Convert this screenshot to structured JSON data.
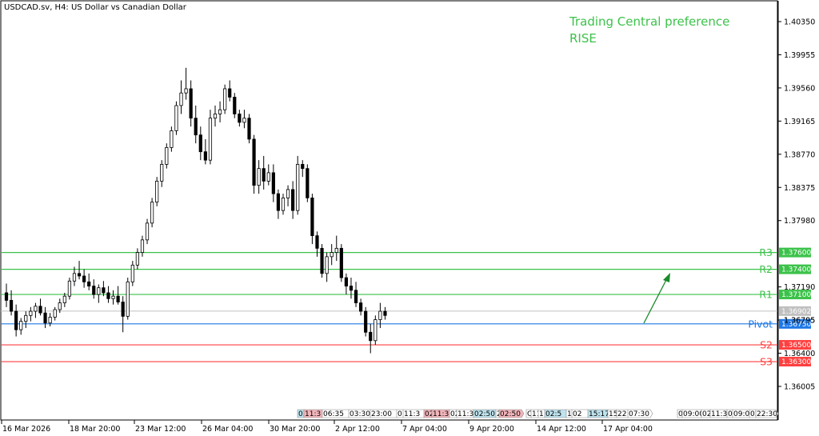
{
  "chart_data": {
    "type": "candlestick",
    "symbol_line": "USDCAD.sv, H4:  US Dollar vs Canadian Dollar",
    "annotation": {
      "title": "Trading Central preference",
      "direction": "RISE"
    },
    "y_ticks": [
      "1.40350",
      "1.39955",
      "1.39560",
      "1.39165",
      "1.38770",
      "1.38375",
      "1.37980",
      "1.37190",
      "1.36795",
      "1.36400",
      "1.36005"
    ],
    "x_labels": [
      "16 Mar 2026",
      "18 Mar 20:00",
      "23 Mar 12:00",
      "26 Mar 04:00",
      "30 Mar 20:00",
      "2 Apr 12:00",
      "7 Apr 04:00",
      "9 Apr 20:00",
      "14 Apr 12:00",
      "17 Apr 04:00"
    ],
    "levels": [
      {
        "name": "R3",
        "price": "1.37600",
        "role": "resistance"
      },
      {
        "name": "R2",
        "price": "1.37400",
        "role": "resistance"
      },
      {
        "name": "R1",
        "price": "1.37100",
        "role": "resistance"
      },
      {
        "name": "Pivot",
        "price": "1.36750",
        "role": "pivot"
      },
      {
        "name": "S2",
        "price": "1.36500",
        "role": "support"
      },
      {
        "name": "S3",
        "price": "1.36300",
        "role": "support"
      }
    ],
    "current_price": "1.36902",
    "hidden_tick": "1.36795",
    "session_tags": [
      {
        "text": "03",
        "color": "#bfe3ee"
      },
      {
        "text": "11:3",
        "color": "#f3b5bb"
      },
      {
        "text": "06:35",
        "color": "#ffffff"
      },
      {
        "text": "03:30",
        "color": "#ffffff"
      },
      {
        "text": "23:00",
        "color": "#ffffff"
      },
      {
        "text": "0",
        "color": "#ffffff"
      },
      {
        "text": "11:3",
        "color": "#ffffff"
      },
      {
        "text": "02",
        "color": "#f3b5bb"
      },
      {
        "text": "11:3",
        "color": "#f3b5bb"
      },
      {
        "text": "02",
        "color": "#ffffff"
      },
      {
        "text": "11:3",
        "color": "#ffffff"
      },
      {
        "text": "02:50",
        "color": "#bfe3ee"
      },
      {
        "text": "2",
        "color": "#ffffff"
      },
      {
        "text": "02:50",
        "color": "#f3b5bb"
      },
      {
        "text": "C",
        "color": "#ffffff"
      },
      {
        "text": "11",
        "color": "#ffffff"
      },
      {
        "text": "1",
        "color": "#ffffff"
      },
      {
        "text": "02:5",
        "color": "#bfe3ee"
      },
      {
        "text": "1",
        "color": "#ffffff"
      },
      {
        "text": "02",
        "color": "#ffffff"
      },
      {
        "text": "15:17",
        "color": "#bfe3ee"
      },
      {
        "text": "15",
        "color": "#ffffff"
      },
      {
        "text": "22",
        "color": "#ffffff"
      },
      {
        "text": "07:30",
        "color": "#ffffff"
      },
      {
        "text": "0",
        "color": "#ffffff"
      },
      {
        "text": "09:00",
        "color": "#ffffff"
      },
      {
        "text": "02",
        "color": "#ffffff"
      },
      {
        "text": "11:3",
        "color": "#ffffff"
      },
      {
        "text": "0",
        "color": "#ffffff"
      },
      {
        "text": "09:0",
        "color": "#ffffff"
      },
      {
        "text": "02",
        "color": "#ffffff"
      },
      {
        "text": "22:30",
        "color": "#ffffff"
      }
    ],
    "colors": {
      "resistance": "#3cc24a",
      "support": "#ff4040",
      "pivot": "#1e78e6",
      "current": "#c0c0c0",
      "arrow": "#1a8a2a",
      "bull": "#ffffff",
      "bear": "#000000"
    },
    "candles": [
      [
        1.3712,
        1.3723,
        1.3695,
        1.3703
      ],
      [
        1.3703,
        1.3715,
        1.3685,
        1.369
      ],
      [
        1.369,
        1.3698,
        1.366,
        1.3668
      ],
      [
        1.3668,
        1.3682,
        1.3662,
        1.3678
      ],
      [
        1.3678,
        1.369,
        1.367,
        1.3685
      ],
      [
        1.3685,
        1.3695,
        1.3678,
        1.369
      ],
      [
        1.369,
        1.37,
        1.3682,
        1.3696
      ],
      [
        1.3696,
        1.3705,
        1.3685,
        1.3688
      ],
      [
        1.3688,
        1.3695,
        1.367,
        1.3676
      ],
      [
        1.3676,
        1.3688,
        1.3672,
        1.3683
      ],
      [
        1.3683,
        1.3695,
        1.3679,
        1.3692
      ],
      [
        1.3692,
        1.3705,
        1.3688,
        1.37
      ],
      [
        1.37,
        1.3712,
        1.3695,
        1.3708
      ],
      [
        1.3708,
        1.373,
        1.3704,
        1.3726
      ],
      [
        1.3726,
        1.3743,
        1.372,
        1.3735
      ],
      [
        1.3735,
        1.375,
        1.3728,
        1.3732
      ],
      [
        1.3732,
        1.374,
        1.3718,
        1.3725
      ],
      [
        1.3725,
        1.3735,
        1.3715,
        1.372
      ],
      [
        1.372,
        1.3728,
        1.3705,
        1.371
      ],
      [
        1.371,
        1.3722,
        1.37,
        1.3718
      ],
      [
        1.3718,
        1.3726,
        1.3708,
        1.3712
      ],
      [
        1.3712,
        1.372,
        1.37,
        1.3705
      ],
      [
        1.3705,
        1.3715,
        1.3698,
        1.3708
      ],
      [
        1.3708,
        1.372,
        1.3698,
        1.3701
      ],
      [
        1.3701,
        1.3708,
        1.3665,
        1.3684
      ],
      [
        1.3684,
        1.373,
        1.368,
        1.3725
      ],
      [
        1.3725,
        1.375,
        1.372,
        1.3745
      ],
      [
        1.3745,
        1.3765,
        1.374,
        1.376
      ],
      [
        1.376,
        1.378,
        1.3755,
        1.3775
      ],
      [
        1.3775,
        1.38,
        1.377,
        1.3795
      ],
      [
        1.3795,
        1.3825,
        1.379,
        1.382
      ],
      [
        1.382,
        1.385,
        1.3815,
        1.3845
      ],
      [
        1.3845,
        1.387,
        1.3838,
        1.3865
      ],
      [
        1.3865,
        1.389,
        1.386,
        1.3885
      ],
      [
        1.3885,
        1.391,
        1.388,
        1.3905
      ],
      [
        1.3905,
        1.394,
        1.39,
        1.3935
      ],
      [
        1.3935,
        1.3965,
        1.3925,
        1.395
      ],
      [
        1.395,
        1.398,
        1.3942,
        1.3955
      ],
      [
        1.3955,
        1.3965,
        1.391,
        1.392
      ],
      [
        1.392,
        1.3935,
        1.389,
        1.39
      ],
      [
        1.39,
        1.391,
        1.387,
        1.388
      ],
      [
        1.388,
        1.3895,
        1.3865,
        1.387
      ],
      [
        1.387,
        1.393,
        1.3865,
        1.392
      ],
      [
        1.392,
        1.3935,
        1.391,
        1.3925
      ],
      [
        1.3925,
        1.394,
        1.3915,
        1.393
      ],
      [
        1.393,
        1.396,
        1.3925,
        1.3955
      ],
      [
        1.3955,
        1.3965,
        1.394,
        1.3945
      ],
      [
        1.3945,
        1.395,
        1.392,
        1.3925
      ],
      [
        1.3925,
        1.393,
        1.391,
        1.3915
      ],
      [
        1.3915,
        1.393,
        1.3908,
        1.392
      ],
      [
        1.392,
        1.3925,
        1.389,
        1.3895
      ],
      [
        1.3895,
        1.39,
        1.383,
        1.384
      ],
      [
        1.384,
        1.387,
        1.383,
        1.386
      ],
      [
        1.386,
        1.3875,
        1.3835,
        1.3845
      ],
      [
        1.3845,
        1.3865,
        1.384,
        1.3855
      ],
      [
        1.3855,
        1.3865,
        1.382,
        1.383
      ],
      [
        1.383,
        1.3835,
        1.38,
        1.381
      ],
      [
        1.381,
        1.383,
        1.3805,
        1.3825
      ],
      [
        1.3825,
        1.384,
        1.3815,
        1.3835
      ],
      [
        1.3835,
        1.3845,
        1.38,
        1.381
      ],
      [
        1.381,
        1.3875,
        1.3805,
        1.3865
      ],
      [
        1.3865,
        1.387,
        1.385,
        1.386
      ],
      [
        1.386,
        1.3865,
        1.382,
        1.3825
      ],
      [
        1.3825,
        1.383,
        1.377,
        1.378
      ],
      [
        1.378,
        1.3785,
        1.3755,
        1.3765
      ],
      [
        1.3765,
        1.377,
        1.373,
        1.3735
      ],
      [
        1.3735,
        1.376,
        1.3725,
        1.3755
      ],
      [
        1.3755,
        1.377,
        1.3745,
        1.376
      ],
      [
        1.376,
        1.378,
        1.375,
        1.3765
      ],
      [
        1.3765,
        1.377,
        1.3725,
        1.373
      ],
      [
        1.373,
        1.3735,
        1.371,
        1.372
      ],
      [
        1.372,
        1.373,
        1.3705,
        1.3715
      ],
      [
        1.3715,
        1.3725,
        1.3695,
        1.37
      ],
      [
        1.37,
        1.3705,
        1.3685,
        1.369
      ],
      [
        1.369,
        1.3695,
        1.366,
        1.3665
      ],
      [
        1.3665,
        1.3675,
        1.364,
        1.3655
      ],
      [
        1.3655,
        1.3685,
        1.365,
        1.368
      ],
      [
        1.368,
        1.37,
        1.367,
        1.369
      ],
      [
        1.369,
        1.3695,
        1.368,
        1.3685
      ]
    ]
  }
}
